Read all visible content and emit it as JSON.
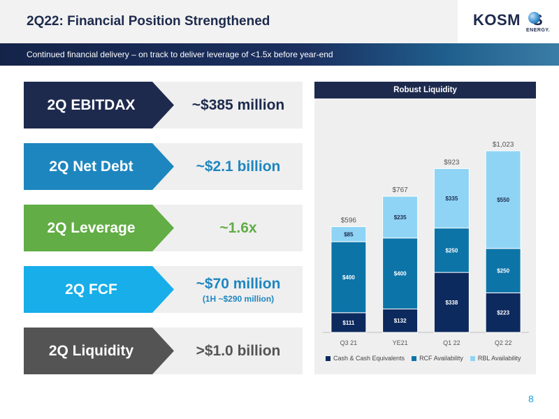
{
  "header": {
    "title": "2Q22: Financial Position Strengthened",
    "subtitle": "Continued financial delivery – on track to deliver leverage of <1.5x before year-end",
    "logo_text": "KOSM",
    "logo_text_end": "S",
    "logo_subtext": "ENERGY."
  },
  "kpis": [
    {
      "label": "2Q EBITDAX",
      "value": "~$385 million",
      "sub": "",
      "color": "#1d2a4d",
      "value_color": "#1d2a4d"
    },
    {
      "label": "2Q Net Debt",
      "value": "~$2.1 billion",
      "sub": "",
      "color": "#1e86bf",
      "value_color": "#1e86bf"
    },
    {
      "label": "2Q Leverage",
      "value": "~1.6x",
      "sub": "",
      "color": "#62ad45",
      "value_color": "#62ad45"
    },
    {
      "label": "2Q FCF",
      "value": "~$70 million",
      "sub": "(1H ~$290 million)",
      "color": "#17aeea",
      "value_color": "#1e86bf"
    },
    {
      "label": "2Q Liquidity",
      "value": ">$1.0 billion",
      "sub": "",
      "color": "#545454",
      "value_color": "#545454"
    }
  ],
  "chart_data": {
    "type": "bar",
    "stacked": true,
    "title": "Robust Liquidity",
    "categories": [
      "Q3 21",
      "YE21",
      "Q1 22",
      "Q2 22"
    ],
    "series": [
      {
        "name": "Cash & Cash Equivalents",
        "values": [
          111,
          132,
          338,
          223
        ],
        "labels": [
          "$111",
          "$132",
          "$338",
          "$223"
        ],
        "color": "#0d2a5e"
      },
      {
        "name": "RCF Availability",
        "values": [
          400,
          400,
          250,
          250
        ],
        "labels": [
          "$400",
          "$400",
          "$250",
          "$250"
        ],
        "color": "#0d74a8"
      },
      {
        "name": "RBL Availability",
        "values": [
          85,
          235,
          335,
          550
        ],
        "labels": [
          "$85",
          "$235",
          "$335",
          "$550"
        ],
        "color": "#8fd4f4"
      }
    ],
    "totals": [
      "$596",
      "$767",
      "$923",
      "$1,023"
    ],
    "total_values": [
      596,
      767,
      923,
      1023
    ],
    "ylim": [
      0,
      1023
    ],
    "legend_position": "bottom",
    "grid": false
  },
  "page_number": "8"
}
